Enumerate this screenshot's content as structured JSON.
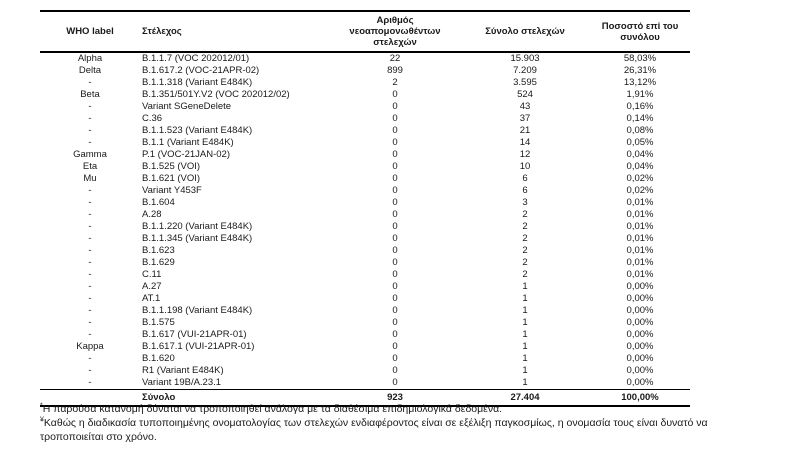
{
  "table": {
    "headers": [
      "WHO label",
      "Στέλεχος",
      "Αριθμός νεοαπομονωθέντων στελεχών",
      "Σύνολο στελεχών",
      "Ποσοστό επί του συνόλου"
    ],
    "rows": [
      [
        "Alpha",
        "B.1.1.7 (VOC 202012/01)",
        "22",
        "15.903",
        "58,03%"
      ],
      [
        "Delta",
        "B.1.617.2 (VOC-21APR-02)",
        "899",
        "7.209",
        "26,31%"
      ],
      [
        "-",
        "B.1.1.318 (Variant E484K)",
        "2",
        "3.595",
        "13,12%"
      ],
      [
        "Beta",
        "B.1.351/501Y.V2 (VOC 202012/02)",
        "0",
        "524",
        "1,91%"
      ],
      [
        "-",
        "Variant SGeneDelete",
        "0",
        "43",
        "0,16%"
      ],
      [
        "-",
        "C.36",
        "0",
        "37",
        "0,14%"
      ],
      [
        "-",
        "B.1.1.523 (Variant E484K)",
        "0",
        "21",
        "0,08%"
      ],
      [
        "-",
        "B.1.1 (Variant E484K)",
        "0",
        "14",
        "0,05%"
      ],
      [
        "Gamma",
        "P.1 (VOC-21JAN-02)",
        "0",
        "12",
        "0,04%"
      ],
      [
        "Eta",
        "B.1.525 (VOI)",
        "0",
        "10",
        "0,04%"
      ],
      [
        "Mu",
        "B.1.621 (VOI)",
        "0",
        "6",
        "0,02%"
      ],
      [
        "-",
        "Variant Y453F",
        "0",
        "6",
        "0,02%"
      ],
      [
        "-",
        "B.1.604",
        "0",
        "3",
        "0,01%"
      ],
      [
        "-",
        "A.28",
        "0",
        "2",
        "0,01%"
      ],
      [
        "-",
        "B.1.1.220 (Variant E484K)",
        "0",
        "2",
        "0,01%"
      ],
      [
        "-",
        "B.1.1.345 (Variant E484K)",
        "0",
        "2",
        "0,01%"
      ],
      [
        "-",
        "B.1.623",
        "0",
        "2",
        "0,01%"
      ],
      [
        "-",
        "B.1.629",
        "0",
        "2",
        "0,01%"
      ],
      [
        "-",
        "C.11",
        "0",
        "2",
        "0,01%"
      ],
      [
        "-",
        "A.27",
        "0",
        "1",
        "0,00%"
      ],
      [
        "-",
        "AT.1",
        "0",
        "1",
        "0,00%"
      ],
      [
        "-",
        "B.1.1.198 (Variant E484K)",
        "0",
        "1",
        "0,00%"
      ],
      [
        "-",
        "B.1.575",
        "0",
        "1",
        "0,00%"
      ],
      [
        "-",
        "B.1.617 (VUI-21APR-01)",
        "0",
        "1",
        "0,00%"
      ],
      [
        "Kappa",
        "B.1.617.1 (VUI-21APR-01)",
        "0",
        "1",
        "0,00%"
      ],
      [
        "-",
        "B.1.620",
        "0",
        "1",
        "0,00%"
      ],
      [
        "-",
        "R1 (Variant E484K)",
        "0",
        "1",
        "0,00%"
      ],
      [
        "-",
        "Variant 19B/A.23.1",
        "0",
        "1",
        "0,00%"
      ]
    ],
    "total_row": {
      "who": "",
      "label": "Σύνολο",
      "new": "923",
      "total": "27.404",
      "pct": "100,00%"
    }
  },
  "footnotes": [
    {
      "marker": "*",
      "text": "Η παρούσα κατανομή δύναται να τροποποιηθεί ανάλογα με τα διαθέσιμα επιδημιολογικά δεδομένα."
    },
    {
      "marker": "¥",
      "text": "Καθώς η διαδικασία τυποποιημένης ονοματολογίας των στελεχών ενδιαφέροντος είναι σε εξέλιξη παγκοσμίως, η ονομασία τους είναι δυνατό να τροποποιείται στο χρόνο."
    }
  ]
}
